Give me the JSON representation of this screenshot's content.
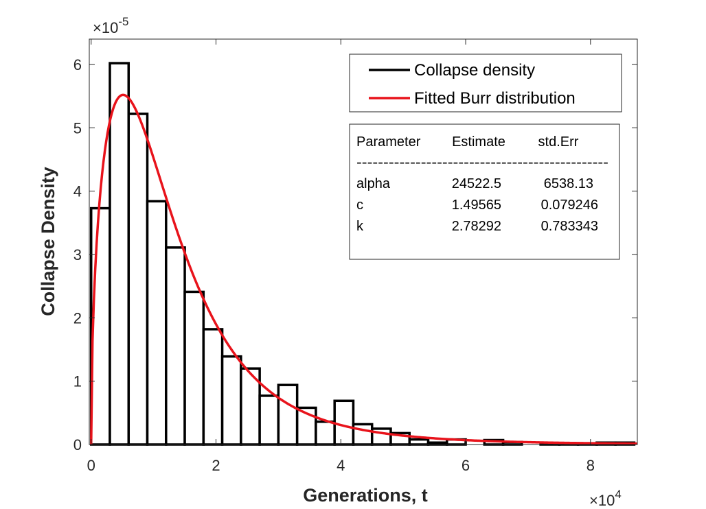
{
  "chart_data": {
    "type": "bar",
    "xlabel": "Generations, t",
    "ylabel": "Collapse Density",
    "x_exponent_base": "×10",
    "x_exponent_power": "4",
    "y_exponent_base": "×10",
    "y_exponent_power": "-5",
    "xlim": [
      -300,
      87500
    ],
    "ylim": [
      0,
      6.4e-05
    ],
    "xticks": [
      0,
      20000,
      40000,
      60000,
      80000
    ],
    "xtick_labels": [
      "0",
      "2",
      "4",
      "6",
      "8"
    ],
    "yticks": [
      0,
      1e-05,
      2e-05,
      3e-05,
      4e-05,
      5e-05,
      6e-05
    ],
    "ytick_labels": [
      "0",
      "1",
      "2",
      "3",
      "4",
      "5",
      "6"
    ],
    "bin_width": 3000,
    "bin_edges_start": 0,
    "histogram_values": [
      3.73e-05,
      6.02e-05,
      5.22e-05,
      3.84e-05,
      3.11e-05,
      2.41e-05,
      1.82e-05,
      1.39e-05,
      1.2e-05,
      7.7e-06,
      9.4e-06,
      5.8e-06,
      3.6e-06,
      6.9e-06,
      3.2e-06,
      2.5e-06,
      1.8e-06,
      8e-07,
      3e-07,
      8e-07,
      0.0,
      7e-07,
      4e-07,
      0.0,
      2e-07,
      2e-07,
      1e-07,
      3e-07,
      3e-07
    ],
    "burr_fit": {
      "alpha": 24522.5,
      "c": 1.49565,
      "k": 2.78292
    },
    "series": [
      {
        "name": "Collapse density",
        "color": "#000000"
      },
      {
        "name": "Fitted Burr distribution",
        "color": "#e8131b"
      }
    ],
    "legend_position": "top-right",
    "grid": false,
    "stats_table": {
      "headers": [
        "Parameter",
        "Estimate",
        "std.Err"
      ],
      "separator": "-----------------------------------------------",
      "rows": [
        [
          "alpha",
          "24522.5",
          "6538.13"
        ],
        [
          "c",
          "1.49565",
          "0.079246"
        ],
        [
          "k",
          "2.78292",
          "0.783343"
        ]
      ]
    }
  }
}
